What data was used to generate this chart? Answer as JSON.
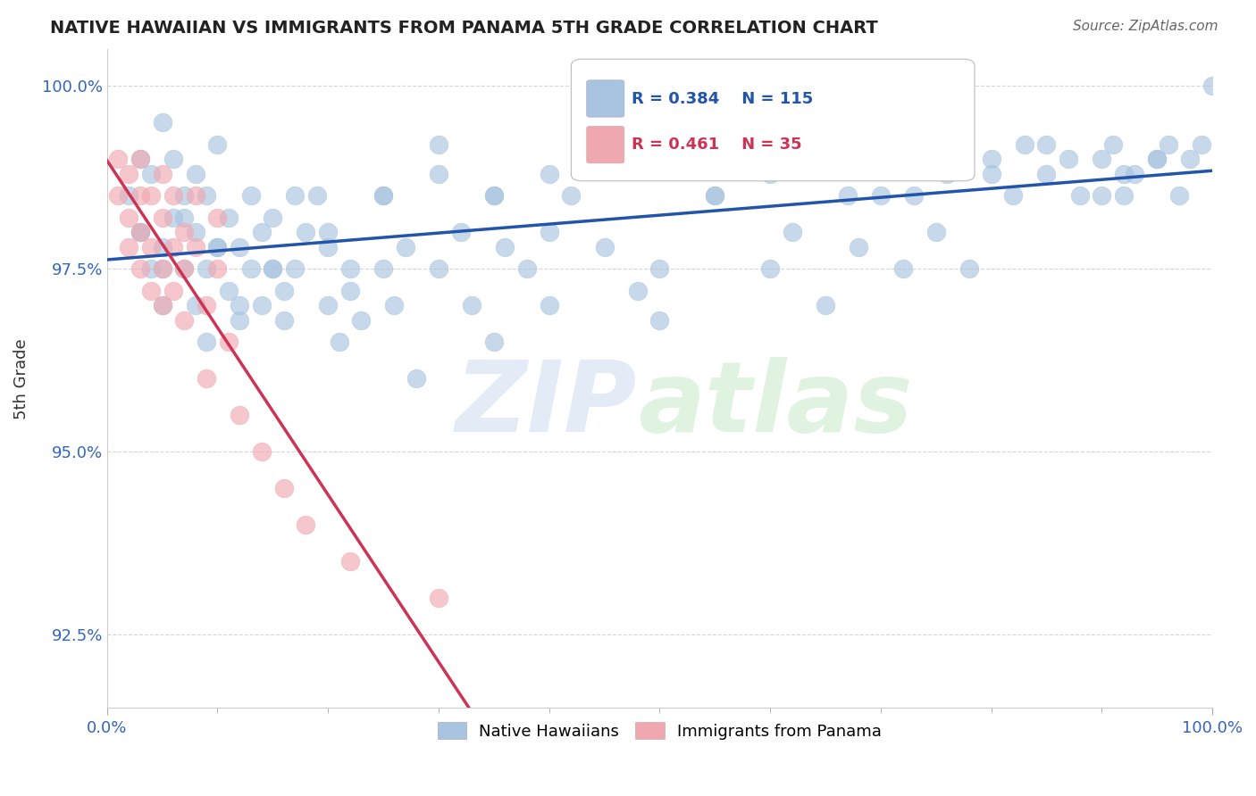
{
  "title": "NATIVE HAWAIIAN VS IMMIGRANTS FROM PANAMA 5TH GRADE CORRELATION CHART",
  "source": "Source: ZipAtlas.com",
  "ylabel": "5th Grade",
  "xlim": [
    0.0,
    1.0
  ],
  "ylim": [
    0.915,
    1.005
  ],
  "yticks": [
    0.925,
    0.95,
    0.975,
    1.0
  ],
  "ytick_labels": [
    "92.5%",
    "95.0%",
    "97.5%",
    "100.0%"
  ],
  "xticks": [
    0.0,
    1.0
  ],
  "xtick_labels": [
    "0.0%",
    "100.0%"
  ],
  "blue_R": 0.384,
  "blue_N": 115,
  "pink_R": 0.461,
  "pink_N": 35,
  "blue_color": "#a8c4e0",
  "pink_color": "#f0a8b0",
  "blue_line_color": "#2255aa",
  "pink_line_color": "#cc3355",
  "blue_scatter_x": [
    0.02,
    0.03,
    0.03,
    0.04,
    0.04,
    0.05,
    0.05,
    0.05,
    0.06,
    0.06,
    0.07,
    0.07,
    0.08,
    0.08,
    0.08,
    0.09,
    0.09,
    0.09,
    0.1,
    0.1,
    0.11,
    0.11,
    0.12,
    0.12,
    0.13,
    0.13,
    0.14,
    0.14,
    0.15,
    0.15,
    0.16,
    0.16,
    0.17,
    0.18,
    0.19,
    0.2,
    0.2,
    0.21,
    0.22,
    0.23,
    0.25,
    0.25,
    0.26,
    0.27,
    0.28,
    0.3,
    0.32,
    0.33,
    0.35,
    0.36,
    0.38,
    0.4,
    0.42,
    0.45,
    0.48,
    0.5,
    0.55,
    0.58,
    0.6,
    0.62,
    0.65,
    0.67,
    0.68,
    0.7,
    0.72,
    0.73,
    0.75,
    0.76,
    0.78,
    0.8,
    0.82,
    0.83,
    0.85,
    0.87,
    0.88,
    0.9,
    0.91,
    0.92,
    0.93,
    0.95,
    0.96,
    0.97,
    0.98,
    0.99,
    1.0,
    0.03,
    0.05,
    0.07,
    0.1,
    0.12,
    0.15,
    0.17,
    0.2,
    0.22,
    0.25,
    0.3,
    0.35,
    0.4,
    0.45,
    0.5,
    0.55,
    0.6,
    0.65,
    0.7,
    0.75,
    0.8,
    0.85,
    0.9,
    0.92,
    0.95,
    0.3,
    0.35,
    0.4,
    0.45,
    0.5
  ],
  "blue_scatter_y": [
    0.985,
    0.99,
    0.98,
    0.975,
    0.988,
    0.978,
    0.995,
    0.97,
    0.982,
    0.99,
    0.975,
    0.985,
    0.97,
    0.98,
    0.988,
    0.975,
    0.985,
    0.965,
    0.978,
    0.992,
    0.972,
    0.982,
    0.968,
    0.978,
    0.975,
    0.985,
    0.97,
    0.98,
    0.975,
    0.982,
    0.972,
    0.968,
    0.975,
    0.98,
    0.985,
    0.97,
    0.978,
    0.965,
    0.972,
    0.968,
    0.975,
    0.985,
    0.97,
    0.978,
    0.96,
    0.975,
    0.98,
    0.97,
    0.965,
    0.978,
    0.975,
    0.97,
    0.985,
    0.978,
    0.972,
    0.968,
    0.985,
    0.99,
    0.975,
    0.98,
    0.97,
    0.985,
    0.978,
    0.99,
    0.975,
    0.985,
    0.98,
    0.988,
    0.975,
    0.99,
    0.985,
    0.992,
    0.988,
    0.99,
    0.985,
    0.99,
    0.992,
    0.985,
    0.988,
    0.99,
    0.992,
    0.985,
    0.99,
    0.992,
    1.0,
    0.98,
    0.975,
    0.982,
    0.978,
    0.97,
    0.975,
    0.985,
    0.98,
    0.975,
    0.985,
    0.988,
    0.985,
    0.98,
    0.99,
    0.975,
    0.985,
    0.988,
    0.99,
    0.985,
    0.992,
    0.988,
    0.992,
    0.985,
    0.988,
    0.99,
    0.992,
    0.985,
    0.988,
    0.99,
    0.992
  ],
  "pink_scatter_x": [
    0.01,
    0.01,
    0.02,
    0.02,
    0.02,
    0.03,
    0.03,
    0.03,
    0.03,
    0.04,
    0.04,
    0.04,
    0.05,
    0.05,
    0.05,
    0.05,
    0.06,
    0.06,
    0.06,
    0.07,
    0.07,
    0.07,
    0.08,
    0.08,
    0.09,
    0.09,
    0.1,
    0.1,
    0.11,
    0.12,
    0.14,
    0.16,
    0.18,
    0.22,
    0.3
  ],
  "pink_scatter_y": [
    0.99,
    0.985,
    0.988,
    0.982,
    0.978,
    0.985,
    0.99,
    0.98,
    0.975,
    0.985,
    0.978,
    0.972,
    0.982,
    0.975,
    0.988,
    0.97,
    0.978,
    0.985,
    0.972,
    0.98,
    0.975,
    0.968,
    0.978,
    0.985,
    0.97,
    0.96,
    0.975,
    0.982,
    0.965,
    0.955,
    0.95,
    0.945,
    0.94,
    0.935,
    0.93
  ]
}
